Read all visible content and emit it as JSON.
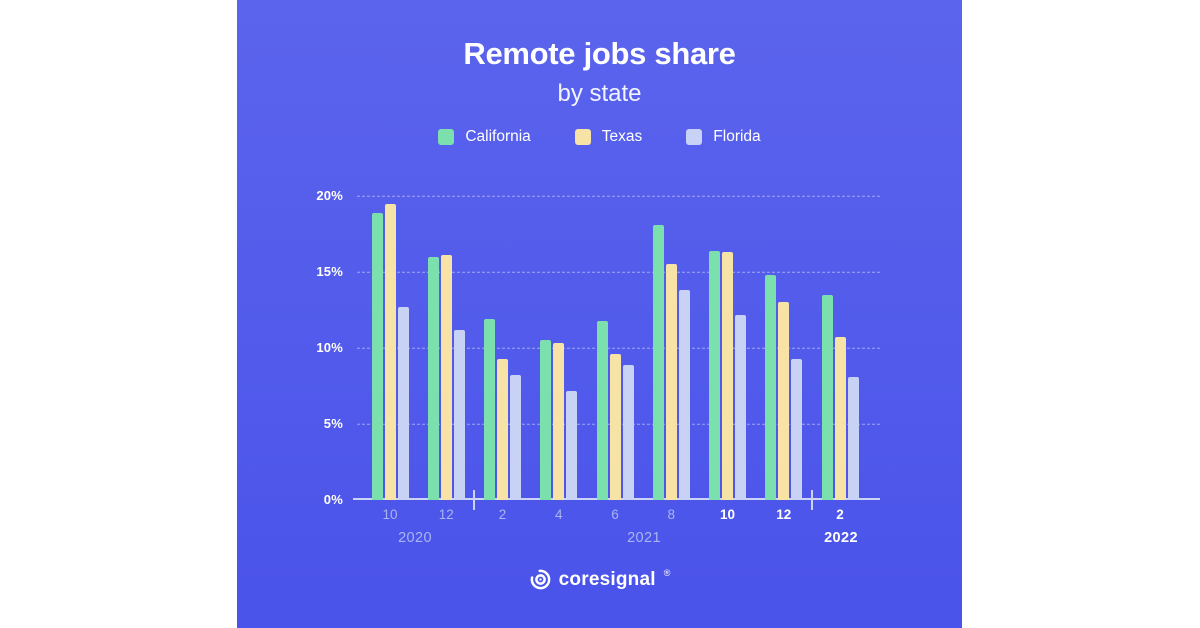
{
  "panel": {
    "bg_top": "#5b64ec",
    "bg_bottom": "#4a53ea"
  },
  "header": {
    "title": "Remote jobs share",
    "subtitle": "by state"
  },
  "legend": [
    {
      "label": "California",
      "color": "#7be0ae"
    },
    {
      "label": "Texas",
      "color": "#f8e3a6"
    },
    {
      "label": "Florida",
      "color": "#c7d2f5"
    }
  ],
  "chart_data": {
    "type": "bar",
    "title": "Remote jobs share",
    "subtitle": "by state",
    "categories": [
      "10",
      "12",
      "2",
      "4",
      "6",
      "8",
      "10",
      "12",
      "2"
    ],
    "category_bold": [
      false,
      false,
      false,
      false,
      false,
      false,
      true,
      true,
      true
    ],
    "years": [
      {
        "label": "2020",
        "bold": false,
        "groups": [
          0,
          1
        ]
      },
      {
        "label": "2021",
        "bold": false,
        "groups": [
          2,
          7
        ]
      },
      {
        "label": "2022",
        "bold": true,
        "groups": [
          8,
          8
        ]
      }
    ],
    "series": [
      {
        "name": "California",
        "color": "#7be0ae",
        "values": [
          18.9,
          16.0,
          11.9,
          10.5,
          11.8,
          18.1,
          16.4,
          14.8,
          13.5
        ]
      },
      {
        "name": "Texas",
        "color": "#f8e3a6",
        "values": [
          19.5,
          16.1,
          9.3,
          10.3,
          9.6,
          15.5,
          16.3,
          13.0,
          10.7
        ]
      },
      {
        "name": "Florida",
        "color": "#c7d2f5",
        "values": [
          12.7,
          11.2,
          8.2,
          7.2,
          8.9,
          13.8,
          12.2,
          9.3,
          8.1
        ]
      }
    ],
    "y_ticks": [
      "0%",
      "5%",
      "10%",
      "15%",
      "20%"
    ],
    "ylim": [
      0,
      20
    ],
    "unit": "%",
    "grid": "dashed horizontal",
    "legend_position": "top"
  },
  "footer": {
    "brand": "coresignal",
    "registered": "®"
  }
}
